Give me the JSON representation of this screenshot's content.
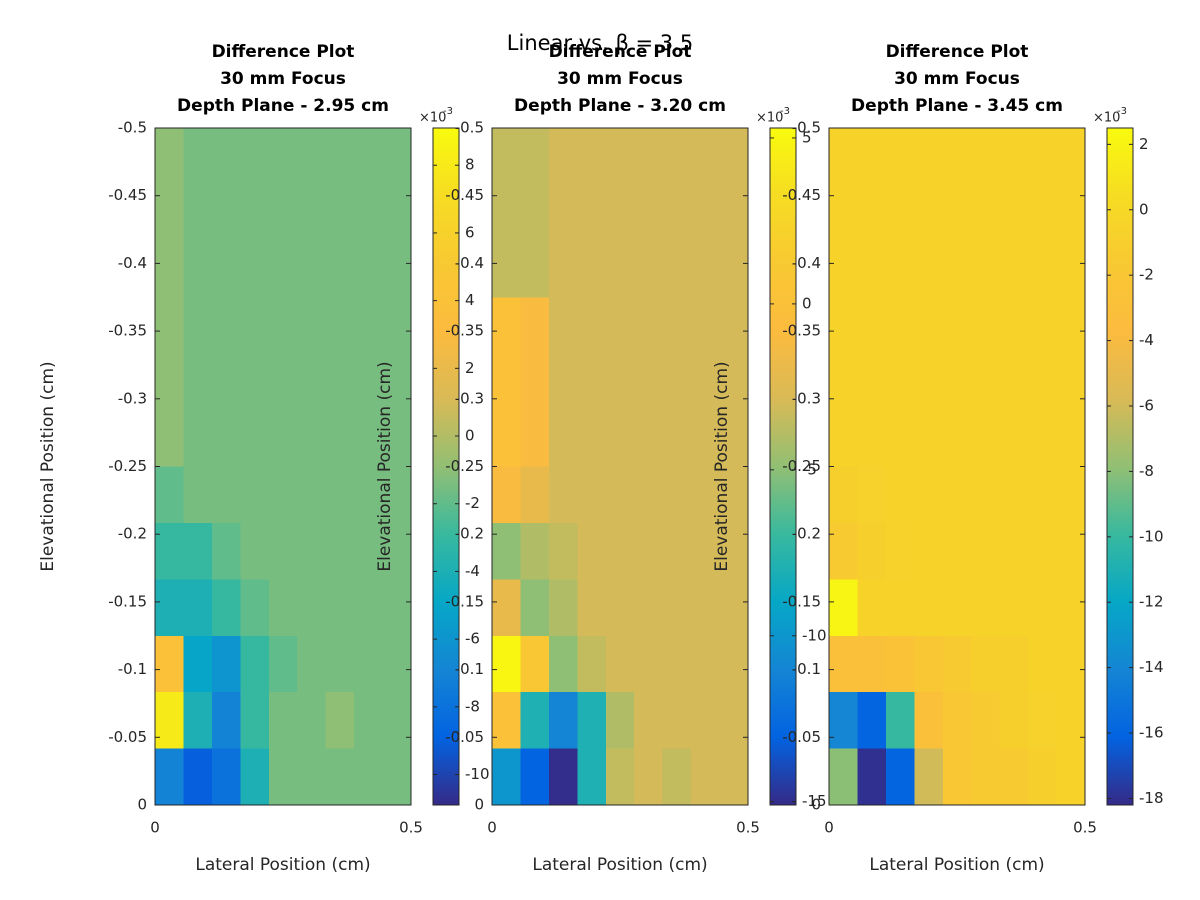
{
  "suptitle": "Linear vs. β = 3.5",
  "chart_data": [
    {
      "type": "heatmap",
      "title": [
        "Difference Plot",
        "30 mm Focus",
        "Depth Plane - 2.95 cm"
      ],
      "xlabel": "Lateral Position (cm)",
      "ylabel": "Elevational Position (cm)",
      "xlim": [
        0,
        0.5
      ],
      "ylim": [
        -0.5,
        0
      ],
      "y_reversed": true,
      "xticks": [
        0,
        0.5
      ],
      "yticks": [
        -0.5,
        -0.45,
        -0.4,
        -0.35,
        -0.3,
        -0.25,
        -0.2,
        -0.15,
        -0.1,
        -0.05,
        0
      ],
      "colormap": "parula",
      "clim": [
        -10.9,
        9.1
      ],
      "cticks": [
        -10,
        -8,
        -6,
        -4,
        -2,
        0,
        2,
        4,
        6,
        8
      ],
      "colorbar_multiplier": {
        "base": "×10",
        "exponent": "-3"
      },
      "z": [
        [
          -1,
          -1.5,
          -1.5,
          -1.5,
          -1.5,
          -1.5,
          -1.5,
          -1.5,
          -1.5
        ],
        [
          -1,
          -1.5,
          -1.5,
          -1.5,
          -1.5,
          -1.5,
          -1.5,
          -1.5,
          -1.5
        ],
        [
          -1,
          -1.5,
          -1.5,
          -1.5,
          -1.5,
          -1.5,
          -1.5,
          -1.5,
          -1.5
        ],
        [
          -1,
          -1.5,
          -1.5,
          -1.5,
          -1.5,
          -1.5,
          -1.5,
          -1.5,
          -1.5
        ],
        [
          -1,
          -1.5,
          -1.5,
          -1.5,
          -1.5,
          -1.5,
          -1.5,
          -1.5,
          -1.5
        ],
        [
          -1,
          -1.5,
          -1.5,
          -1.5,
          -1.5,
          -1.5,
          -1.5,
          -1.5,
          -1.5
        ],
        [
          -2,
          -1.5,
          -1.5,
          -1.5,
          -1.5,
          -1.5,
          -1.5,
          -1.5,
          -1.5
        ],
        [
          -3,
          -3,
          -2,
          -1.5,
          -1.5,
          -1.5,
          -1.5,
          -1.5,
          -1.5
        ],
        [
          -4,
          -4,
          -3,
          -2,
          -1.5,
          -1.5,
          -1.5,
          -1.5,
          -1.5
        ],
        [
          4,
          -5,
          -6,
          -3,
          -2,
          -1.5,
          -1.5,
          -1.5,
          -1.5
        ],
        [
          8,
          -4,
          -7,
          -3,
          -1.5,
          -1.5,
          -1,
          -1.5,
          -1.5
        ],
        [
          -7,
          -9,
          -8,
          -4,
          -1.5,
          -1.5,
          -1.5,
          -1.5,
          -1.5
        ]
      ]
    },
    {
      "type": "heatmap",
      "title": [
        "Difference Plot",
        "30 mm Focus",
        "Depth Plane - 3.20 cm"
      ],
      "xlabel": "Lateral Position (cm)",
      "ylabel": "Elevational Position (cm)",
      "xlim": [
        0,
        0.5
      ],
      "ylim": [
        -0.5,
        0
      ],
      "y_reversed": true,
      "xticks": [
        0,
        0.5
      ],
      "yticks": [
        -0.5,
        -0.45,
        -0.4,
        -0.35,
        -0.3,
        -0.25,
        -0.2,
        -0.15,
        -0.1,
        -0.05,
        0
      ],
      "colormap": "parula",
      "clim": [
        -15.1,
        5.3
      ],
      "cticks": [
        -15,
        -10,
        -5,
        0,
        5
      ],
      "colorbar_multiplier": {
        "base": "×10",
        "exponent": "-3"
      },
      "z": [
        [
          -3.5,
          -3.5,
          -3,
          -3,
          -3,
          -3,
          -3,
          -3,
          -3
        ],
        [
          -3.5,
          -3.5,
          -3,
          -3,
          -3,
          -3,
          -3,
          -3,
          -3
        ],
        [
          -3.5,
          -3.5,
          -3,
          -3,
          -3,
          -3,
          -3,
          -3,
          -3
        ],
        [
          0,
          -1,
          -3,
          -3,
          -3,
          -3,
          -3,
          -3,
          -3
        ],
        [
          0,
          -1,
          -3,
          -3,
          -3,
          -3,
          -3,
          -3,
          -3
        ],
        [
          0,
          -1,
          -3,
          -3,
          -3,
          -3,
          -3,
          -3,
          -3
        ],
        [
          -1,
          -2,
          -3,
          -3,
          -3,
          -3,
          -3,
          -3,
          -3
        ],
        [
          -5,
          -4,
          -3.5,
          -3,
          -3,
          -3,
          -3,
          -3,
          -3
        ],
        [
          -2,
          -5,
          -4,
          -3,
          -3,
          -3,
          -3,
          -3,
          -3
        ],
        [
          5,
          1,
          -5,
          -3.5,
          -3,
          -3,
          -3,
          -3,
          -3
        ],
        [
          0,
          -8,
          -11,
          -8,
          -4,
          -3,
          -3,
          -3,
          -3
        ],
        [
          -10,
          -13,
          -15,
          -8,
          -3.5,
          -3,
          -3.5,
          -3,
          -3
        ]
      ]
    },
    {
      "type": "heatmap",
      "title": [
        "Difference Plot",
        "30 mm Focus",
        "Depth Plane - 3.45 cm"
      ],
      "xlabel": "Lateral Position (cm)",
      "ylabel": "Elevational Position (cm)",
      "xlim": [
        0,
        0.5
      ],
      "ylim": [
        -0.5,
        0
      ],
      "y_reversed": true,
      "xticks": [
        0,
        0.5
      ],
      "yticks": [
        -0.5,
        -0.45,
        -0.4,
        -0.35,
        -0.3,
        -0.25,
        -0.2,
        -0.15,
        -0.1,
        -0.05,
        0
      ],
      "colormap": "parula",
      "clim": [
        -18.2,
        2.5
      ],
      "cticks": [
        -18,
        -16,
        -14,
        -12,
        -10,
        -8,
        -6,
        -4,
        -2,
        0,
        2
      ],
      "colorbar_multiplier": {
        "base": "×10",
        "exponent": "-3"
      },
      "z": [
        [
          -0.5,
          -0.5,
          -0.5,
          -0.5,
          -0.5,
          -0.5,
          -0.5,
          -0.5,
          -0.5
        ],
        [
          -0.5,
          -0.5,
          -0.5,
          -0.5,
          -0.5,
          -0.5,
          -0.5,
          -0.5,
          -0.5
        ],
        [
          -0.5,
          -0.5,
          -0.5,
          -0.5,
          -0.5,
          -0.5,
          -0.5,
          -0.5,
          -0.5
        ],
        [
          -0.5,
          -0.5,
          -0.5,
          -0.5,
          -0.5,
          -0.5,
          -0.5,
          -0.5,
          -0.5
        ],
        [
          -0.5,
          -0.5,
          -0.5,
          -0.5,
          -0.5,
          -0.5,
          -0.5,
          -0.5,
          -0.5
        ],
        [
          -0.5,
          -0.5,
          -0.5,
          -0.5,
          -0.5,
          -0.5,
          -0.5,
          -0.5,
          -0.5
        ],
        [
          -1,
          -0.8,
          -0.5,
          -0.5,
          -0.5,
          -0.5,
          -0.5,
          -0.5,
          -0.5
        ],
        [
          -1.5,
          -1,
          -0.7,
          -0.5,
          -0.5,
          -0.5,
          -0.5,
          -0.5,
          -0.5
        ],
        [
          2,
          -0.5,
          -0.5,
          -0.5,
          -0.5,
          -0.5,
          -0.5,
          -0.5,
          -0.5
        ],
        [
          -3,
          -3,
          -2.5,
          -2,
          -1.5,
          -1,
          -1,
          -0.5,
          -0.5
        ],
        [
          -14,
          -16,
          -10,
          -3,
          -2,
          -1.5,
          -1,
          -0.8,
          -0.5
        ],
        [
          -8,
          -18,
          -16,
          -6,
          -2,
          -1.5,
          -1.5,
          -1,
          -0.5
        ]
      ]
    }
  ]
}
